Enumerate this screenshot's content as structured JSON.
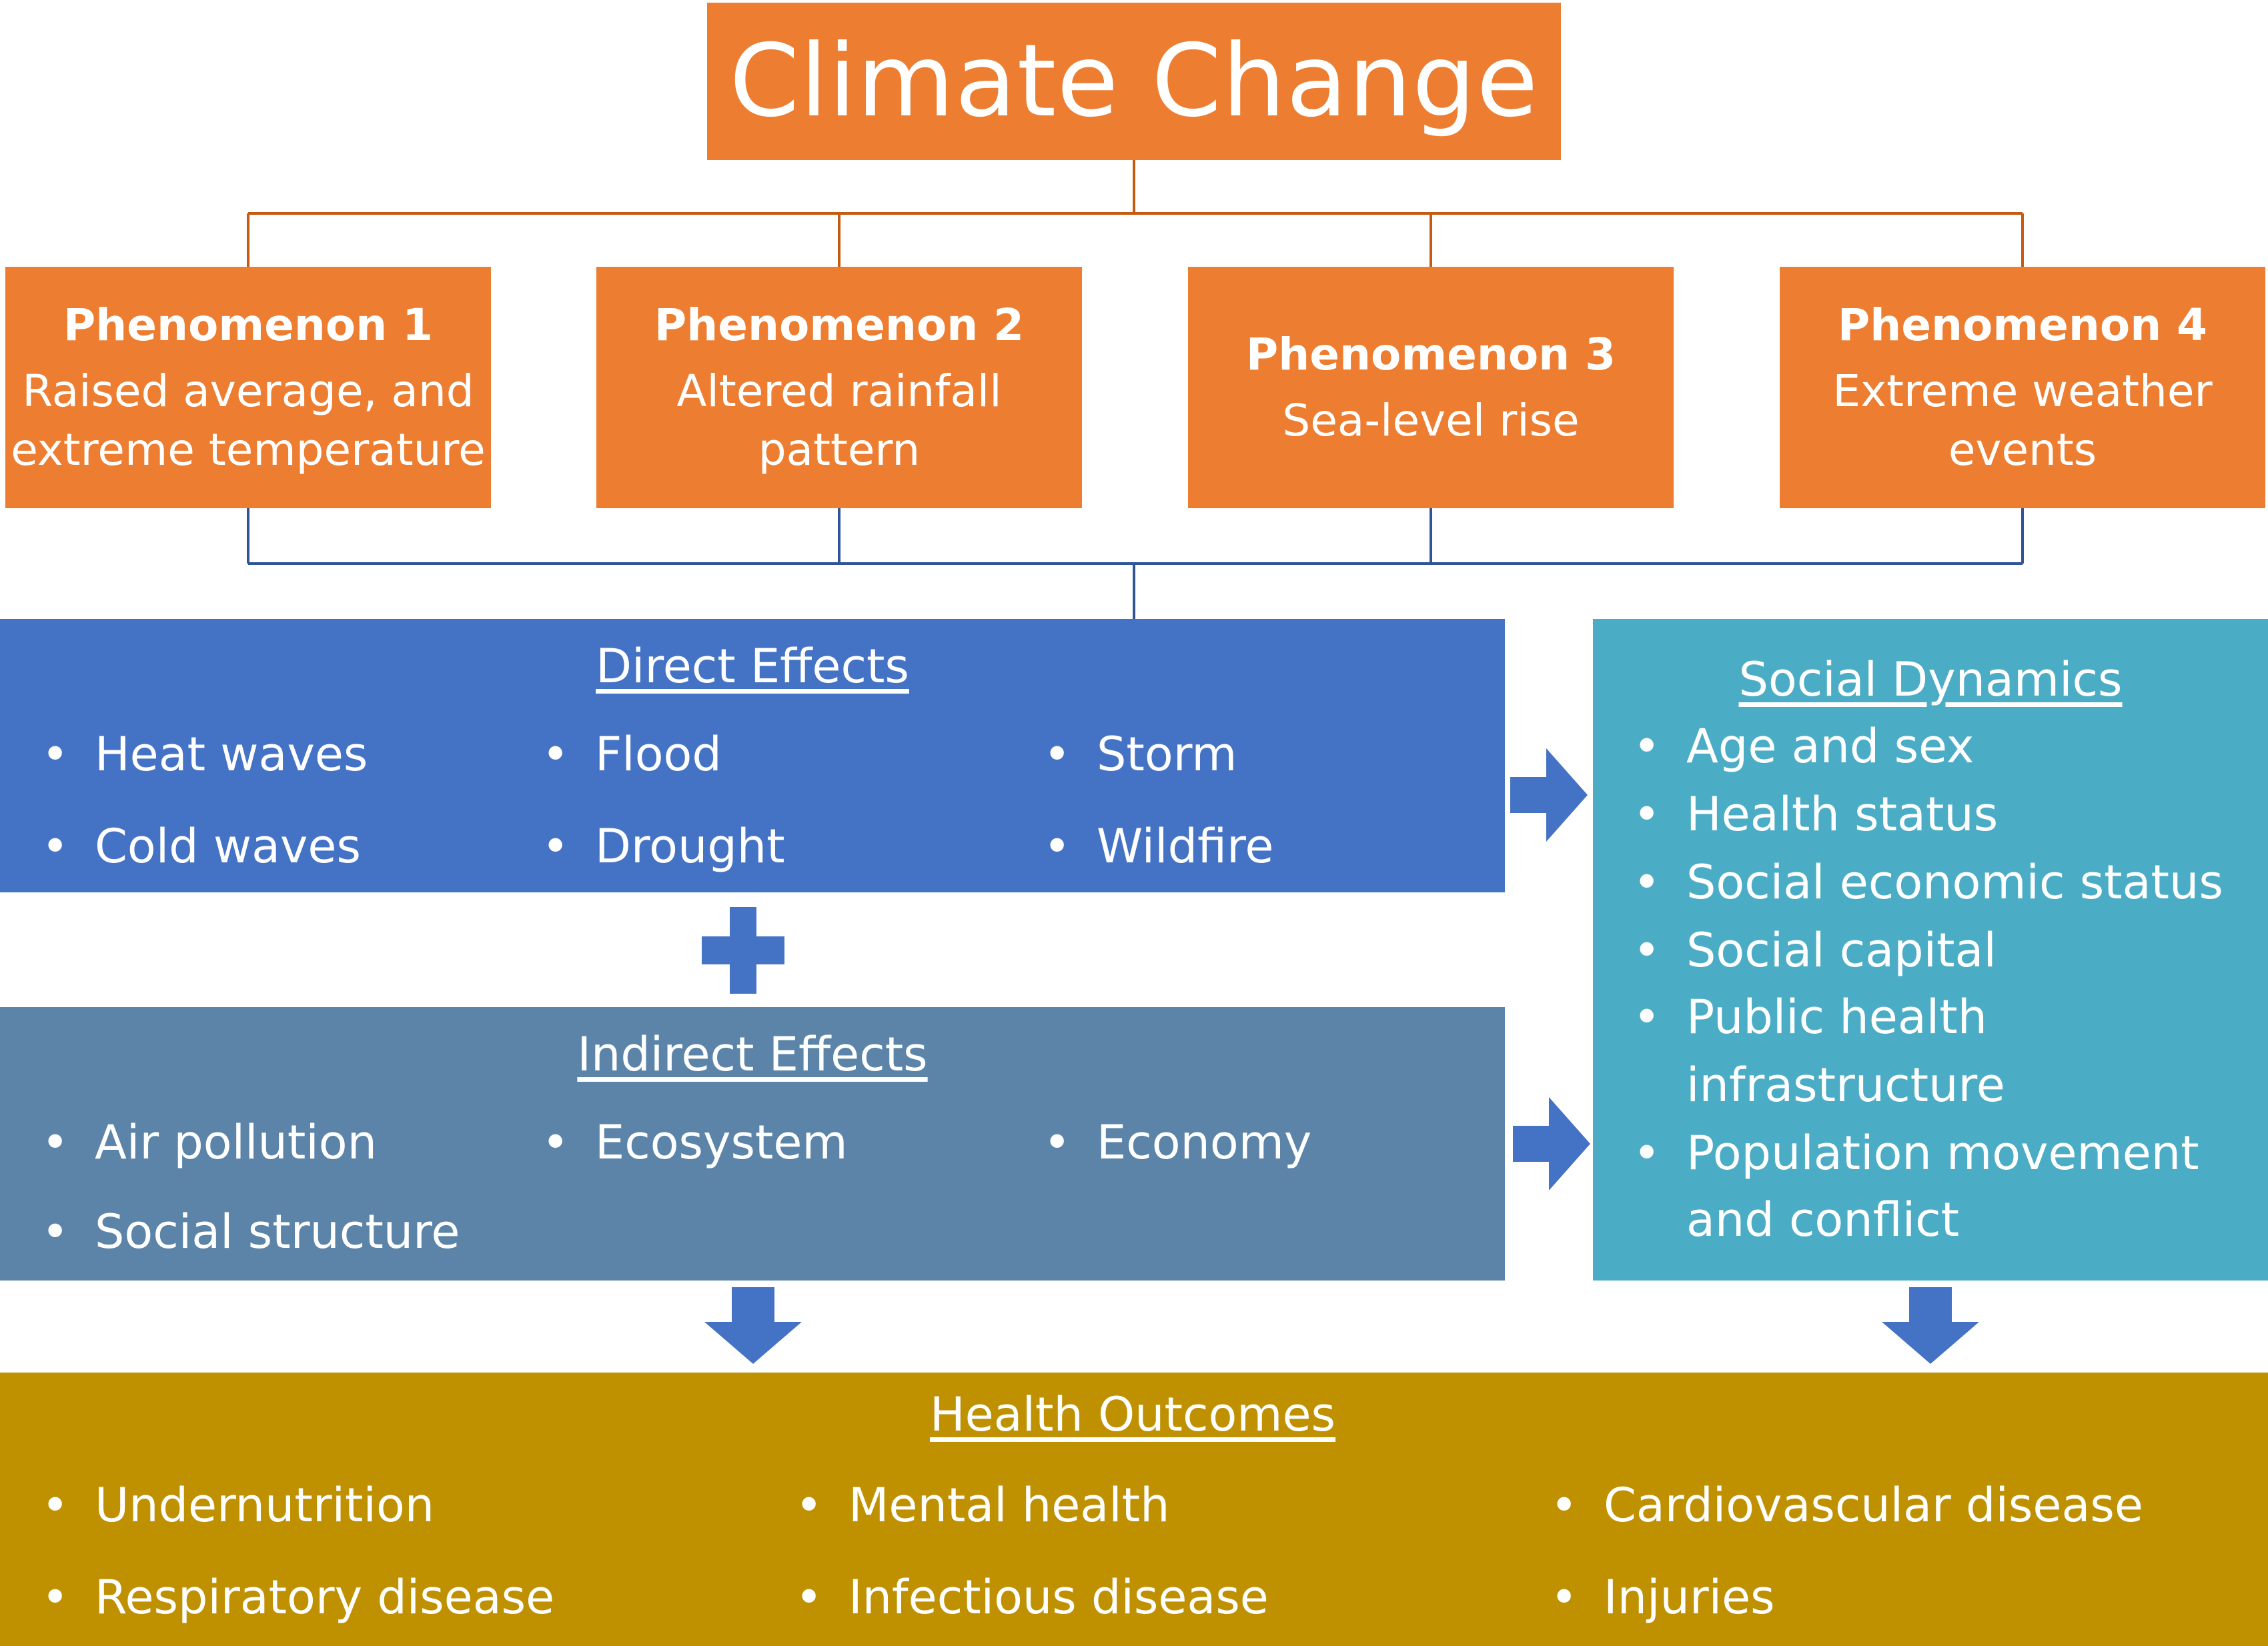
{
  "title": "Climate Change",
  "phenomena": [
    {
      "title": "Phenomenon 1",
      "desc": [
        "Raised average, and",
        "extreme temperature"
      ]
    },
    {
      "title": "Phenomenon 2",
      "desc": [
        "Altered rainfall",
        "pattern"
      ]
    },
    {
      "title": "Phenomenon 3",
      "desc": [
        "Sea-level rise"
      ]
    },
    {
      "title": "Phenomenon 4",
      "desc": [
        "Extreme weather",
        "events"
      ]
    }
  ],
  "direct_effects": {
    "heading": "Direct Effects",
    "items": [
      "Heat waves",
      "Flood",
      "Storm",
      "Cold waves",
      "Drought",
      "Wildfire"
    ]
  },
  "indirect_effects": {
    "heading": "Indirect Effects",
    "items": [
      "Air pollution",
      "Ecosystem",
      "Economy",
      "Social structure"
    ]
  },
  "social_dynamics": {
    "heading": "Social Dynamics",
    "items": [
      "Age and sex",
      "Health status",
      "Social economic status",
      "Social capital",
      "Public health",
      "infrastructure",
      "Population movement",
      "and conflict"
    ]
  },
  "health_outcomes": {
    "heading": "Health Outcomes",
    "items": [
      "Undernutrition",
      "Mental health",
      "Cardiovascular disease",
      "Respiratory disease",
      "Infectious disease",
      "Injuries"
    ]
  },
  "colors": {
    "orange": "#ED7D31",
    "direct_blue": "#4472C4",
    "indirect_slate": "#5B84A8",
    "social_teal": "#4BACC6",
    "health_gold": "#BF9000",
    "arrow_blue": "#4472C4"
  }
}
